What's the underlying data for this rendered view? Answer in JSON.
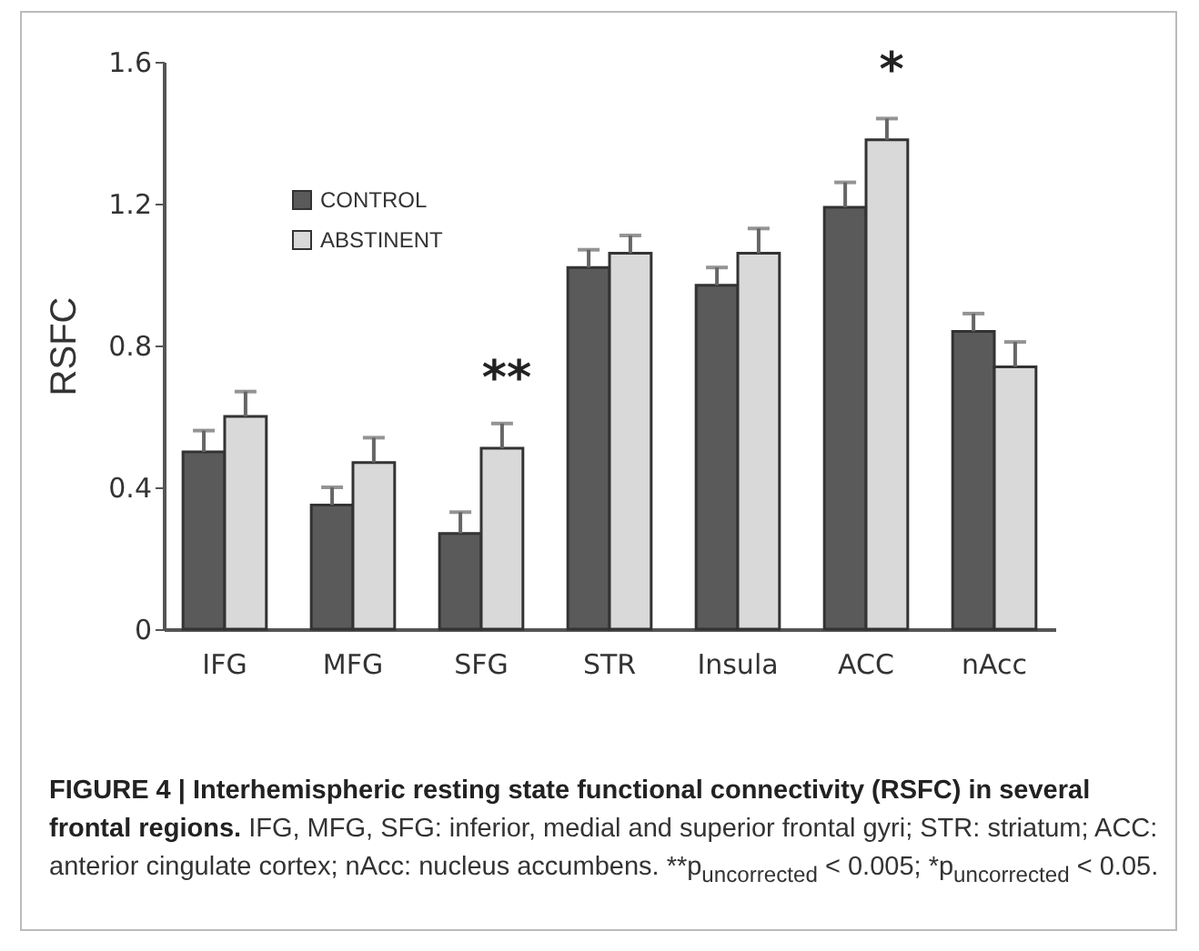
{
  "chart_data": {
    "type": "bar",
    "title": "FIGURE 4 | Interhemispheric resting state functional connectivity (RSFC) in several frontal regions.",
    "ylabel": "RSFC",
    "categories": [
      "IFG",
      "MFG",
      "SFG",
      "STR",
      "Insula",
      "ACC",
      "nAcc"
    ],
    "series": [
      {
        "name": "CONTROL",
        "color": "#5a5a5a",
        "values": [
          0.5,
          0.35,
          0.27,
          1.02,
          0.97,
          1.19,
          0.84
        ],
        "errors": [
          [
            0.5,
            0.56
          ],
          [
            0.35,
            0.4
          ],
          [
            0.27,
            0.33
          ],
          [
            1.02,
            1.07
          ],
          [
            0.97,
            1.02
          ],
          [
            1.19,
            1.26
          ],
          [
            0.84,
            0.89
          ]
        ]
      },
      {
        "name": "ABSTINENT",
        "color": "#d9d9d9",
        "values": [
          0.6,
          0.47,
          0.51,
          1.06,
          1.06,
          1.38,
          0.74
        ],
        "errors": [
          [
            0.6,
            0.67
          ],
          [
            0.47,
            0.54
          ],
          [
            0.51,
            0.58
          ],
          [
            1.06,
            1.11
          ],
          [
            1.06,
            1.13
          ],
          [
            1.38,
            1.44
          ],
          [
            0.74,
            0.81
          ]
        ]
      }
    ],
    "ylim": [
      0,
      1.6
    ],
    "yticks": [
      0,
      0.4,
      0.8,
      1.2,
      1.6
    ],
    "legend": "top left",
    "annotations": [
      {
        "text": "**",
        "x": "SFG",
        "y": 0.51
      },
      {
        "text": "*",
        "x": "ACC",
        "y": 1.38
      },
      "IFG, MFG, SFG: inferior, medial and superior frontal gyri; STR: striatum; ACC: anterior cingulate cortex; nAcc: nucleus accumbens. **p$_{uncorrected}$ < 0.005; *p$_{uncorrected}$ < 0.05."
    ]
  }
}
